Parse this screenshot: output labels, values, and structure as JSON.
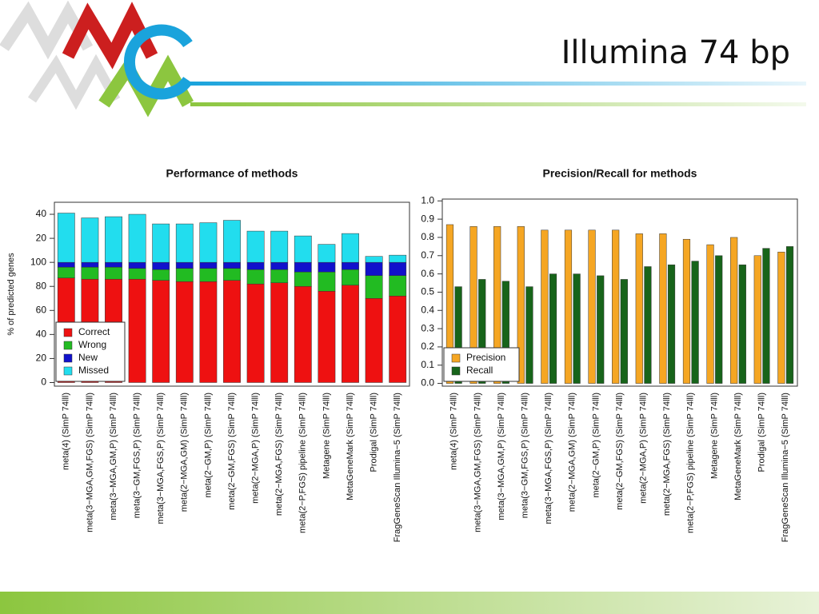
{
  "header": {
    "title": "Illumina 74 bp"
  },
  "chart_data": [
    {
      "type": "bar",
      "stacked": true,
      "title": "Performance of methods",
      "y_label": "% of predicted genes",
      "categories": [
        "meta(4) (SimP 74lll)",
        "meta(3−MGA,GM,FGS) (SimP 74lll)",
        "meta(3−MGA,GM,P) (SimP 74lll)",
        "meta(3−GM,FGS,P) (SimP 74lll)",
        "meta(3−MGA,FGS,P) (SimP 74lll)",
        "meta(2−MGA,GM) (SimP 74lll)",
        "meta(2−GM,P) (SimP 74lll)",
        "meta(2−GM,FGS) (SimP 74lll)",
        "meta(2−MGA,P) (SimP 74lll)",
        "meta(2−MGA,FGS) (SimP 74lll)",
        "meta(2−P,FGS) pipeline (SimP 74lll)",
        "Metagene (SimP 74lll)",
        "MetaGeneMark (SimP 74lll)",
        "Prodigal (SimP 74lll)",
        "FragGeneScan Illumina−5 (SimP 74lll)"
      ],
      "series": [
        {
          "name": "Correct",
          "color": "#ee1111",
          "values": [
            87,
            86,
            86,
            86,
            85,
            84,
            84,
            85,
            82,
            83,
            80,
            76,
            81,
            70,
            72
          ]
        },
        {
          "name": "Wrong",
          "color": "#22bb22",
          "values": [
            9,
            10,
            10,
            9,
            9,
            11,
            11,
            10,
            12,
            11,
            12,
            16,
            13,
            19,
            17
          ]
        },
        {
          "name": "New",
          "color": "#1111cc",
          "values": [
            4,
            4,
            4,
            5,
            6,
            5,
            5,
            5,
            6,
            6,
            8,
            8,
            6,
            11,
            11
          ]
        },
        {
          "name": "Missed",
          "color": "#22ddee",
          "values": [
            41,
            37,
            38,
            40,
            32,
            32,
            33,
            35,
            26,
            26,
            22,
            15,
            24,
            5,
            6
          ]
        }
      ],
      "ylim": [
        -3,
        150
      ],
      "yticks": [
        0,
        20,
        40,
        60,
        80,
        100,
        {
          "value": 120,
          "label": "20"
        },
        {
          "value": 140,
          "label": "40"
        }
      ],
      "legend": "bottom-left"
    },
    {
      "type": "bar",
      "stacked": false,
      "title": "Precision/Recall for methods",
      "categories": [
        "meta(4) (SimP 74lll)",
        "meta(3−MGA,GM,FGS) (SimP 74lll)",
        "meta(3−MGA,GM,P) (SimP 74lll)",
        "meta(3−GM,FGS,P) (SimP 74lll)",
        "meta(3−MGA,FGS,P) (SimP 74lll)",
        "meta(2−MGA,GM) (SimP 74lll)",
        "meta(2−GM,P) (SimP 74lll)",
        "meta(2−GM,FGS) (SimP 74lll)",
        "meta(2−MGA,P) (SimP 74lll)",
        "meta(2−MGA,FGS) (SimP 74lll)",
        "meta(2−P,FGS) pipeline (SimP 74lll)",
        "Metagene (SimP 74lll)",
        "MetaGeneMark (SimP 74lll)",
        "Prodigal (SimP 74lll)",
        "FragGeneScan Illumina−5 (SimP 74lll)"
      ],
      "series": [
        {
          "name": "Precision",
          "color": "#f5a623",
          "values": [
            0.87,
            0.86,
            0.86,
            0.86,
            0.84,
            0.84,
            0.84,
            0.84,
            0.82,
            0.82,
            0.79,
            0.76,
            0.8,
            0.7,
            0.72
          ]
        },
        {
          "name": "Recall",
          "color": "#17641a",
          "values": [
            0.53,
            0.57,
            0.56,
            0.53,
            0.6,
            0.6,
            0.59,
            0.57,
            0.64,
            0.65,
            0.67,
            0.7,
            0.65,
            0.74,
            0.75
          ]
        }
      ],
      "ylim": [
        -0.015,
        1.01
      ],
      "yticks": [
        {
          "value": 0,
          "label": "0.0"
        },
        0.1,
        0.2,
        0.3,
        0.4,
        0.5,
        0.6,
        0.7,
        0.8,
        0.9,
        {
          "value": 1,
          "label": "1.0"
        }
      ],
      "legend": "bottom-left"
    }
  ]
}
